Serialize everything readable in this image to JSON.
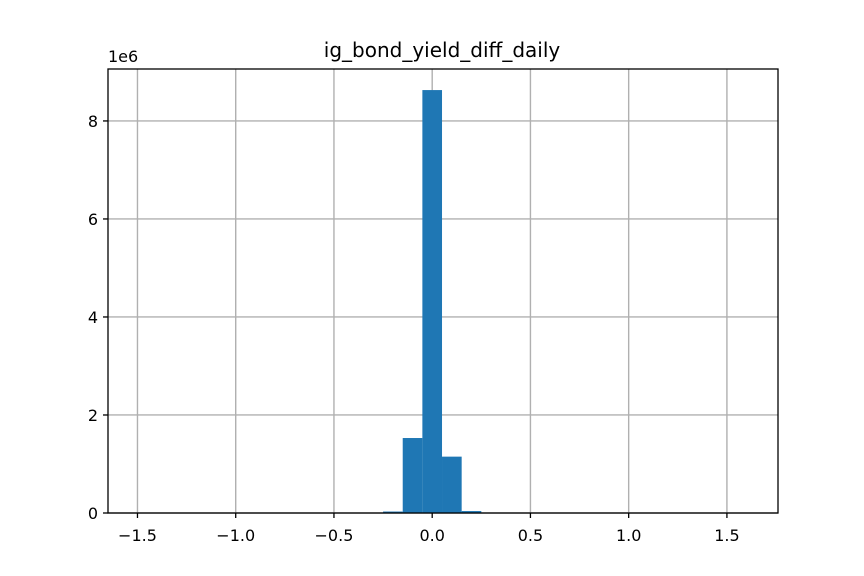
{
  "chart_data": {
    "type": "bar",
    "title": "ig_bond_yield_diff_daily",
    "xlabel": "",
    "ylabel": "",
    "xlim": [
      -1.65,
      1.76
    ],
    "ylim": [
      0,
      9060000
    ],
    "grid": true,
    "y_offset_label": "1e6",
    "color": "#1f77b4",
    "x_ticks": [
      -1.5,
      -1.0,
      -0.5,
      0.0,
      0.5,
      1.0,
      1.5
    ],
    "x_tick_labels": [
      "−1.5",
      "−1.0",
      "−0.5",
      "0.0",
      "0.5",
      "1.0",
      "1.5"
    ],
    "y_ticks": [
      0,
      2000000,
      4000000,
      6000000,
      8000000
    ],
    "y_tick_labels": [
      "0",
      "2",
      "4",
      "6",
      "8"
    ],
    "bins": [
      {
        "x0": -0.25,
        "x1": -0.15,
        "value": 30000
      },
      {
        "x0": -0.15,
        "x1": -0.05,
        "value": 1530000
      },
      {
        "x0": -0.05,
        "x1": 0.05,
        "value": 8630000
      },
      {
        "x0": 0.05,
        "x1": 0.15,
        "value": 1150000
      },
      {
        "x0": 0.15,
        "x1": 0.25,
        "value": 40000
      }
    ]
  }
}
